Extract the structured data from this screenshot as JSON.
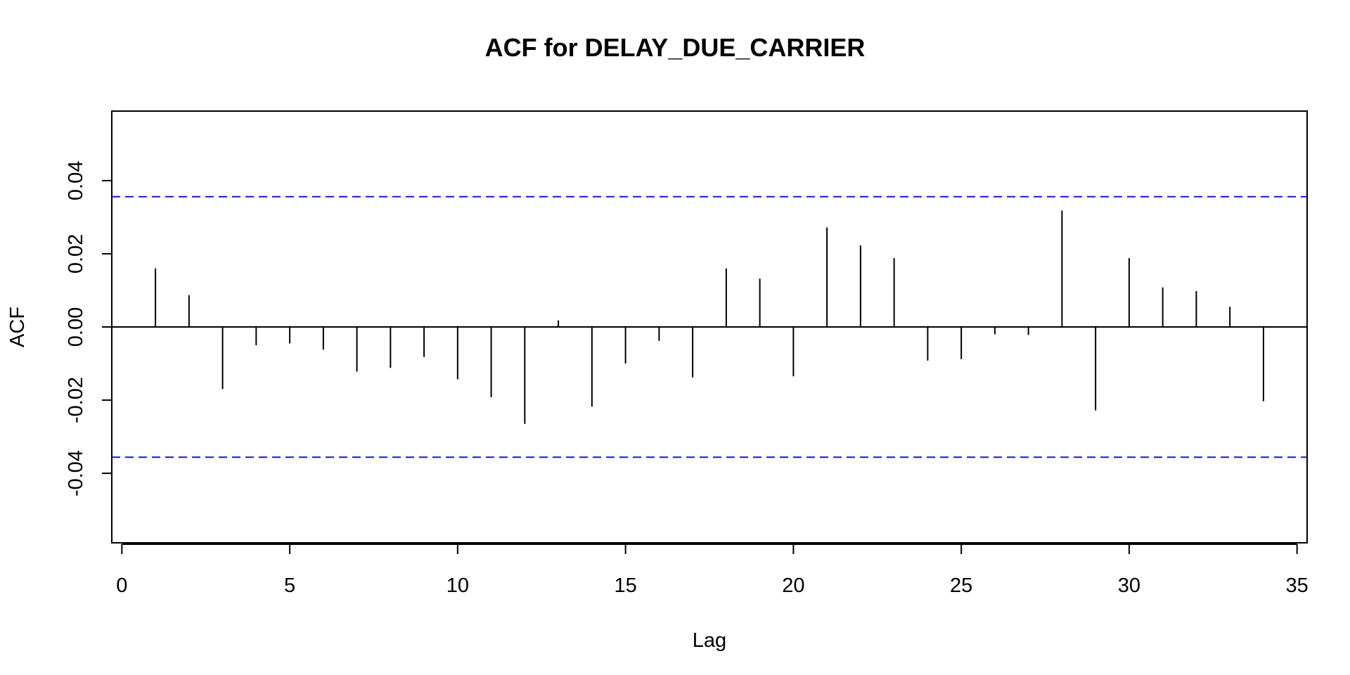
{
  "chart_data": {
    "type": "bar",
    "style": "acf-spikes",
    "title": "ACF for DELAY_DUE_CARRIER",
    "xlabel": "Lag",
    "ylabel": "ACF",
    "xlim": [
      -0.3,
      35.3
    ],
    "ylim": [
      -0.059,
      0.059
    ],
    "xticks": [
      0,
      5,
      10,
      15,
      20,
      25,
      30,
      35
    ],
    "xtick_labels": [
      "0",
      "5",
      "10",
      "15",
      "20",
      "25",
      "30",
      "35"
    ],
    "yticks": [
      -0.04,
      -0.02,
      0.0,
      0.02,
      0.04
    ],
    "ytick_labels": [
      "-0.04",
      "-0.02",
      "0.00",
      "0.02",
      "0.04"
    ],
    "grid": false,
    "legend": "none",
    "lags": [
      1,
      2,
      3,
      4,
      5,
      6,
      7,
      8,
      9,
      10,
      11,
      12,
      13,
      14,
      15,
      16,
      17,
      18,
      19,
      20,
      21,
      22,
      23,
      24,
      25,
      26,
      27,
      28,
      29,
      30,
      31,
      32,
      33,
      34
    ],
    "values": [
      0.016,
      0.0087,
      -0.017,
      -0.005,
      -0.0045,
      -0.0062,
      -0.0122,
      -0.0112,
      -0.0082,
      -0.0143,
      -0.0192,
      -0.0265,
      0.0018,
      -0.0218,
      -0.01,
      -0.0038,
      -0.0138,
      0.016,
      0.0132,
      -0.0135,
      0.0272,
      0.0223,
      0.0188,
      -0.0092,
      -0.0088,
      -0.002,
      -0.0022,
      0.0318,
      -0.0228,
      0.0188,
      0.0108,
      0.0098,
      0.0055,
      -0.0203
    ],
    "confidence_bound": 0.0356,
    "colors": {
      "spike": "#000000",
      "zero_line": "#000000",
      "confidence_line": "#1515e0",
      "frame": "#000000"
    }
  }
}
